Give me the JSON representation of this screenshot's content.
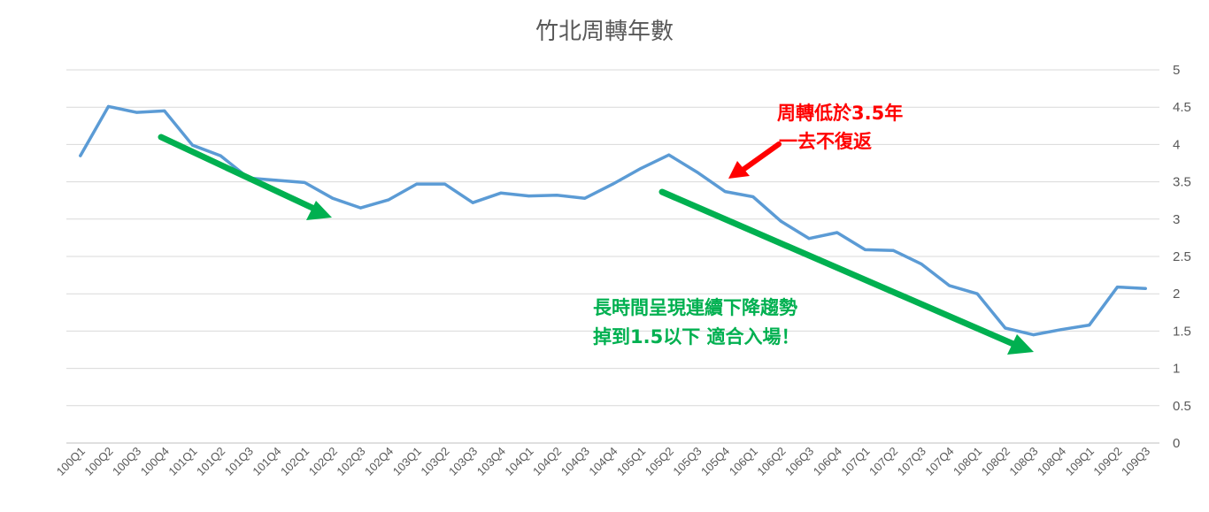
{
  "chart_data": {
    "type": "line",
    "title": "竹北周轉年數",
    "xlabel": "",
    "ylabel": "",
    "ylim": [
      0,
      5
    ],
    "yticks": [
      "0",
      "0.5",
      "1",
      "1.5",
      "2",
      "2.5",
      "3",
      "3.5",
      "4",
      "4.5",
      "5"
    ],
    "y_axis_side": "right",
    "grid": true,
    "legend": "none",
    "categories": [
      "100Q1",
      "100Q2",
      "100Q3",
      "100Q4",
      "101Q1",
      "101Q2",
      "101Q3",
      "101Q4",
      "102Q1",
      "102Q2",
      "102Q3",
      "102Q4",
      "103Q1",
      "103Q2",
      "103Q3",
      "103Q4",
      "104Q1",
      "104Q2",
      "104Q3",
      "104Q4",
      "105Q1",
      "105Q2",
      "105Q3",
      "105Q4",
      "106Q1",
      "106Q2",
      "106Q3",
      "106Q4",
      "107Q1",
      "107Q2",
      "107Q3",
      "107Q4",
      "108Q1",
      "108Q2",
      "108Q3",
      "108Q4",
      "109Q1",
      "109Q2",
      "109Q3"
    ],
    "series": [
      {
        "values": [
          3.85,
          4.51,
          4.43,
          4.45,
          3.99,
          3.85,
          3.55,
          3.52,
          3.49,
          3.28,
          3.15,
          3.26,
          3.47,
          3.47,
          3.22,
          3.35,
          3.31,
          3.32,
          3.28,
          3.47,
          3.68,
          3.86,
          3.63,
          3.37,
          3.3,
          2.97,
          2.74,
          2.82,
          2.59,
          2.58,
          2.4,
          2.11,
          2.0,
          1.54,
          1.45,
          1.52,
          1.58,
          2.09,
          2.07
        ],
        "color": "#5b9bd5"
      }
    ],
    "annotations": {
      "red_line1": "周轉低於3.5年",
      "red_line2": "一去不復返",
      "green_line1": "長時間呈現連續下降趨勢",
      "green_line2": "掉到1.5以下 適合入場！",
      "red_color": "#ff0000",
      "green_color": "#00b050"
    }
  }
}
